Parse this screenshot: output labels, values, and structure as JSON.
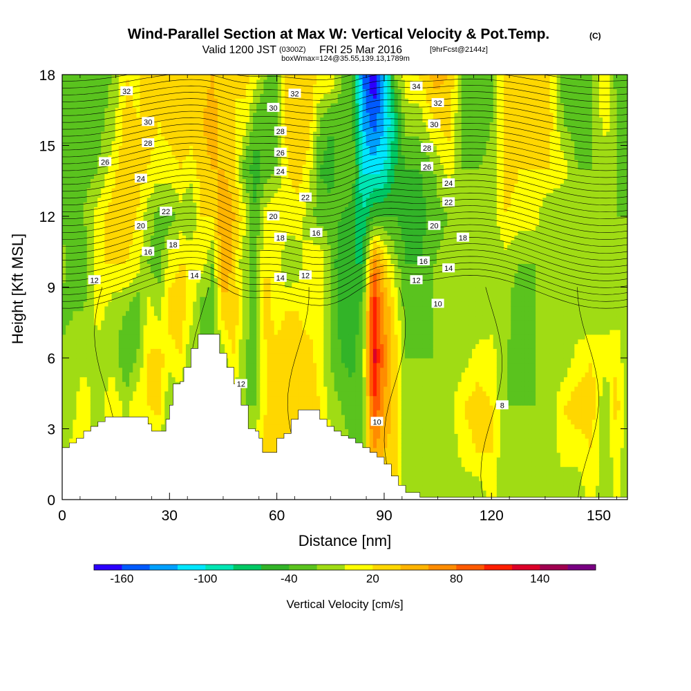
{
  "title": {
    "main": "Wind-Parallel Section at Max W: Vertical Velocity & Pot.Temp.",
    "mark": "(C)",
    "line2_valid": "Valid 1200 JST",
    "line2_zulu": "(0300Z)",
    "line2_date": "FRI 25 Mar 2016",
    "line2_fcst": "[9hrFcst@2144z]",
    "line3": "boxWmax=124@35.55,139.13,1789m"
  },
  "chart_data": {
    "type": "heatmap",
    "xlabel": "Distance [nm]",
    "ylabel": "Height [Kft MSL]",
    "xlim": [
      0,
      158
    ],
    "ylim": [
      0,
      18
    ],
    "x_ticks": [
      0,
      30,
      60,
      90,
      120,
      150
    ],
    "x_tick_labels": [
      "0",
      "30",
      "60",
      "90",
      "120",
      "150"
    ],
    "y_ticks": [
      0,
      3,
      6,
      9,
      12,
      15,
      18
    ],
    "y_tick_labels": [
      "0",
      "3",
      "6",
      "9",
      "12",
      "15",
      "18"
    ],
    "colorbar": {
      "label": "Vertical Velocity [cm/s]",
      "bounds": [
        -180,
        -160,
        -140,
        -120,
        -100,
        -80,
        -60,
        -40,
        -20,
        0,
        20,
        40,
        60,
        80,
        100,
        120,
        140,
        160,
        180
      ],
      "colors": [
        "#2b00ff",
        "#005aff",
        "#00a0ff",
        "#00e6ff",
        "#00e6b4",
        "#00c864",
        "#32b428",
        "#5ac31e",
        "#a0dc14",
        "#ffff00",
        "#ffd700",
        "#ffb400",
        "#ff8c00",
        "#ff5a00",
        "#ff1e00",
        "#dc0028",
        "#a00050",
        "#780082"
      ],
      "tick_values": [
        -160,
        -100,
        -40,
        20,
        80,
        140
      ],
      "tick_labels": [
        "-160",
        "-100",
        "-40",
        "20",
        "80",
        "140"
      ]
    },
    "terrain_kft": [
      [
        0,
        2.2
      ],
      [
        2,
        2.4
      ],
      [
        4,
        2.6
      ],
      [
        6,
        2.9
      ],
      [
        8,
        3.1
      ],
      [
        10,
        3.3
      ],
      [
        12,
        3.5
      ],
      [
        22,
        3.5
      ],
      [
        24,
        3.2
      ],
      [
        25,
        2.9
      ],
      [
        28,
        2.9
      ],
      [
        29,
        3.4
      ],
      [
        30,
        4.0
      ],
      [
        31,
        4.9
      ],
      [
        33,
        5.0
      ],
      [
        34,
        5.6
      ],
      [
        36,
        6.4
      ],
      [
        38,
        7.0
      ],
      [
        42,
        7.0
      ],
      [
        44,
        6.2
      ],
      [
        46,
        5.6
      ],
      [
        48,
        4.9
      ],
      [
        50,
        4.0
      ],
      [
        52,
        3.0
      ],
      [
        54,
        2.9
      ],
      [
        55,
        2.6
      ],
      [
        56,
        2.0
      ],
      [
        58,
        2.0
      ],
      [
        60,
        2.6
      ],
      [
        62,
        2.8
      ],
      [
        64,
        3.4
      ],
      [
        66,
        3.8
      ],
      [
        71,
        3.8
      ],
      [
        72,
        3.4
      ],
      [
        74,
        3.1
      ],
      [
        76,
        2.9
      ],
      [
        78,
        2.7
      ],
      [
        80,
        2.6
      ],
      [
        82,
        2.4
      ],
      [
        84,
        2.2
      ],
      [
        86,
        2.0
      ],
      [
        88,
        1.8
      ],
      [
        90,
        1.5
      ],
      [
        92,
        1.0
      ],
      [
        94,
        0.6
      ],
      [
        96,
        0.3
      ],
      [
        98,
        0.3
      ],
      [
        100,
        0.1
      ],
      [
        158,
        0.1
      ]
    ],
    "wind_columns": [
      {
        "x": 0,
        "w": [
          -10,
          -20,
          -20,
          -10,
          -30,
          -10,
          -30,
          -40,
          -30,
          -20
        ]
      },
      {
        "x": 3,
        "w": [
          10,
          10,
          -10,
          -10,
          -20,
          -30,
          -30,
          -20,
          -30,
          -40
        ]
      },
      {
        "x": 6,
        "w": [
          10,
          20,
          20,
          -10,
          -20,
          -40,
          -20,
          -30,
          -40,
          -30
        ]
      },
      {
        "x": 10,
        "w": [
          -10,
          -10,
          -20,
          -10,
          10,
          20,
          10,
          -20,
          -30,
          -30
        ]
      },
      {
        "x": 14,
        "w": [
          -10,
          10,
          20,
          -10,
          -10,
          20,
          30,
          10,
          -10,
          -20
        ]
      },
      {
        "x": 18,
        "w": [
          -10,
          -10,
          -10,
          -40,
          -20,
          20,
          30,
          40,
          30,
          20
        ]
      },
      {
        "x": 21,
        "w": [
          -10,
          10,
          20,
          -20,
          -40,
          10,
          20,
          30,
          20,
          10
        ]
      },
      {
        "x": 24,
        "w": [
          -20,
          -10,
          20,
          20,
          10,
          -20,
          -10,
          20,
          30,
          40
        ]
      },
      {
        "x": 27,
        "w": [
          -20,
          -20,
          30,
          30,
          -10,
          -30,
          -30,
          10,
          20,
          30
        ]
      },
      {
        "x": 30,
        "w": [
          -20,
          -20,
          -20,
          10,
          30,
          10,
          -30,
          10,
          30,
          40
        ]
      },
      {
        "x": 33,
        "w": [
          -20,
          -20,
          -20,
          20,
          30,
          20,
          -10,
          20,
          40,
          40
        ]
      },
      {
        "x": 36,
        "w": [
          -20,
          -20,
          -20,
          -20,
          10,
          20,
          -20,
          10,
          30,
          40
        ]
      },
      {
        "x": 39,
        "w": [
          -20,
          -20,
          -20,
          -20,
          -30,
          10,
          20,
          30,
          40,
          30
        ]
      },
      {
        "x": 42,
        "w": [
          -20,
          -20,
          -20,
          -20,
          -30,
          -20,
          20,
          40,
          50,
          40
        ]
      },
      {
        "x": 45,
        "w": [
          -20,
          -20,
          -20,
          -10,
          30,
          60,
          60,
          40,
          30,
          30
        ]
      },
      {
        "x": 48,
        "w": [
          -20,
          -20,
          -10,
          20,
          40,
          30,
          40,
          30,
          20,
          20
        ]
      },
      {
        "x": 51,
        "w": [
          -20,
          -20,
          -20,
          -20,
          -10,
          -20,
          10,
          -30,
          10,
          30
        ]
      },
      {
        "x": 54,
        "w": [
          10,
          20,
          -20,
          -30,
          -30,
          -20,
          -40,
          -50,
          -30,
          10
        ]
      },
      {
        "x": 57,
        "w": [
          20,
          30,
          20,
          20,
          30,
          20,
          10,
          -30,
          -40,
          -20
        ]
      },
      {
        "x": 60,
        "w": [
          20,
          30,
          30,
          30,
          10,
          10,
          20,
          -20,
          -30,
          -20
        ]
      },
      {
        "x": 63,
        "w": [
          20,
          20,
          30,
          40,
          20,
          -20,
          10,
          20,
          30,
          30
        ]
      },
      {
        "x": 66,
        "w": [
          20,
          20,
          30,
          30,
          20,
          -10,
          10,
          30,
          40,
          30
        ]
      },
      {
        "x": 69,
        "w": [
          20,
          30,
          30,
          30,
          10,
          10,
          -10,
          10,
          30,
          30
        ]
      },
      {
        "x": 72,
        "w": [
          20,
          30,
          20,
          10,
          10,
          20,
          -30,
          -40,
          -20,
          20
        ]
      },
      {
        "x": 75,
        "w": [
          20,
          10,
          -10,
          -20,
          -20,
          -20,
          -30,
          -50,
          -40,
          20
        ]
      },
      {
        "x": 78,
        "w": [
          -10,
          -10,
          -20,
          -40,
          -50,
          -60,
          -40,
          -20,
          -30,
          -20
        ]
      },
      {
        "x": 81,
        "w": [
          -10,
          -20,
          -30,
          -50,
          -60,
          -60,
          -50,
          -20,
          -30,
          -40
        ]
      },
      {
        "x": 84,
        "w": [
          -10,
          -20,
          -20,
          -20,
          -30,
          -60,
          -80,
          -100,
          -120,
          -140
        ]
      },
      {
        "x": 87,
        "w": [
          40,
          60,
          100,
          130,
          120,
          80,
          -40,
          -110,
          -150,
          -180
        ]
      },
      {
        "x": 90,
        "w": [
          30,
          40,
          60,
          70,
          60,
          30,
          -40,
          -100,
          -120,
          -130
        ]
      },
      {
        "x": 93,
        "w": [
          20,
          30,
          30,
          30,
          20,
          -10,
          -40,
          -60,
          -80,
          -20
        ]
      },
      {
        "x": 96,
        "w": [
          -10,
          -20,
          -20,
          -20,
          -30,
          -40,
          -50,
          -40,
          -10,
          10
        ]
      },
      {
        "x": 100,
        "w": [
          -20,
          -20,
          -20,
          -20,
          -30,
          -40,
          -50,
          -40,
          -10,
          20
        ]
      },
      {
        "x": 104,
        "w": [
          -20,
          -20,
          -20,
          -20,
          -20,
          -20,
          -30,
          -20,
          20,
          50
        ]
      },
      {
        "x": 108,
        "w": [
          -20,
          -20,
          -10,
          -20,
          -20,
          -10,
          -20,
          10,
          30,
          40
        ]
      },
      {
        "x": 112,
        "w": [
          -20,
          10,
          20,
          -10,
          -20,
          -20,
          -20,
          -20,
          -30,
          -20
        ]
      },
      {
        "x": 116,
        "w": [
          -20,
          20,
          30,
          10,
          -20,
          -20,
          -20,
          -20,
          -40,
          -40
        ]
      },
      {
        "x": 120,
        "w": [
          10,
          20,
          20,
          10,
          -10,
          -20,
          -10,
          -10,
          -20,
          -20
        ]
      },
      {
        "x": 124,
        "w": [
          -20,
          -20,
          -20,
          -20,
          -10,
          -10,
          20,
          30,
          30,
          30
        ]
      },
      {
        "x": 128,
        "w": [
          -20,
          -20,
          -20,
          -30,
          -40,
          -20,
          10,
          20,
          30,
          40
        ]
      },
      {
        "x": 132,
        "w": [
          -20,
          -20,
          -20,
          -20,
          -20,
          -20,
          10,
          20,
          30,
          30
        ]
      },
      {
        "x": 136,
        "w": [
          -20,
          -20,
          -20,
          -20,
          -20,
          -20,
          -20,
          20,
          30,
          30
        ]
      },
      {
        "x": 140,
        "w": [
          -20,
          10,
          20,
          -20,
          -20,
          -20,
          -20,
          10,
          -20,
          -30
        ]
      },
      {
        "x": 144,
        "w": [
          -20,
          10,
          30,
          10,
          -20,
          -20,
          -20,
          -20,
          -30,
          -30
        ]
      },
      {
        "x": 148,
        "w": [
          10,
          20,
          30,
          20,
          -20,
          -20,
          -20,
          -20,
          -20,
          -20
        ]
      },
      {
        "x": 152,
        "w": [
          -20,
          -20,
          -20,
          10,
          -10,
          -10,
          -20,
          -20,
          10,
          20
        ]
      },
      {
        "x": 155,
        "w": [
          10,
          20,
          30,
          20,
          -10,
          -10,
          -20,
          -20,
          -20,
          -30
        ]
      },
      {
        "x": 158,
        "w": [
          -20,
          -20,
          -20,
          -20,
          -10,
          -10,
          -20,
          -30,
          -20,
          -20
        ]
      }
    ],
    "w_levels_kft": [
      0,
      2,
      4,
      6,
      8,
      10,
      12,
      14,
      16,
      18
    ],
    "theta_contour_labels": [
      {
        "text": "32",
        "x": 18,
        "y": 17.3
      },
      {
        "text": "30",
        "x": 24,
        "y": 16.0
      },
      {
        "text": "28",
        "x": 24,
        "y": 15.1
      },
      {
        "text": "26",
        "x": 12,
        "y": 14.3
      },
      {
        "text": "24",
        "x": 22,
        "y": 13.6
      },
      {
        "text": "22",
        "x": 29,
        "y": 12.2
      },
      {
        "text": "20",
        "x": 22,
        "y": 11.6
      },
      {
        "text": "18",
        "x": 31,
        "y": 10.8
      },
      {
        "text": "16",
        "x": 24,
        "y": 10.5
      },
      {
        "text": "14",
        "x": 37,
        "y": 9.5
      },
      {
        "text": "12",
        "x": 9,
        "y": 9.3
      },
      {
        "text": "32",
        "x": 65,
        "y": 17.2
      },
      {
        "text": "30",
        "x": 59,
        "y": 16.6
      },
      {
        "text": "28",
        "x": 61,
        "y": 15.6
      },
      {
        "text": "26",
        "x": 61,
        "y": 14.7
      },
      {
        "text": "24",
        "x": 61,
        "y": 13.9
      },
      {
        "text": "22",
        "x": 68,
        "y": 12.8
      },
      {
        "text": "20",
        "x": 59,
        "y": 12.0
      },
      {
        "text": "18",
        "x": 61,
        "y": 11.1
      },
      {
        "text": "16",
        "x": 71,
        "y": 11.3
      },
      {
        "text": "14",
        "x": 61,
        "y": 9.4
      },
      {
        "text": "12",
        "x": 68,
        "y": 9.5
      },
      {
        "text": "34",
        "x": 99,
        "y": 17.5
      },
      {
        "text": "32",
        "x": 105,
        "y": 16.8
      },
      {
        "text": "30",
        "x": 104,
        "y": 15.9
      },
      {
        "text": "28",
        "x": 102,
        "y": 14.9
      },
      {
        "text": "26",
        "x": 102,
        "y": 14.1
      },
      {
        "text": "24",
        "x": 108,
        "y": 13.4
      },
      {
        "text": "22",
        "x": 108,
        "y": 12.6
      },
      {
        "text": "20",
        "x": 104,
        "y": 11.6
      },
      {
        "text": "18",
        "x": 112,
        "y": 11.1
      },
      {
        "text": "16",
        "x": 101,
        "y": 10.1
      },
      {
        "text": "14",
        "x": 108,
        "y": 9.8
      },
      {
        "text": "12",
        "x": 99,
        "y": 9.3
      },
      {
        "text": "10",
        "x": 105,
        "y": 8.3
      },
      {
        "text": "12",
        "x": 50,
        "y": 4.9
      },
      {
        "text": "10",
        "x": 88,
        "y": 3.3
      },
      {
        "text": "8",
        "x": 123,
        "y": 4.0
      }
    ]
  }
}
